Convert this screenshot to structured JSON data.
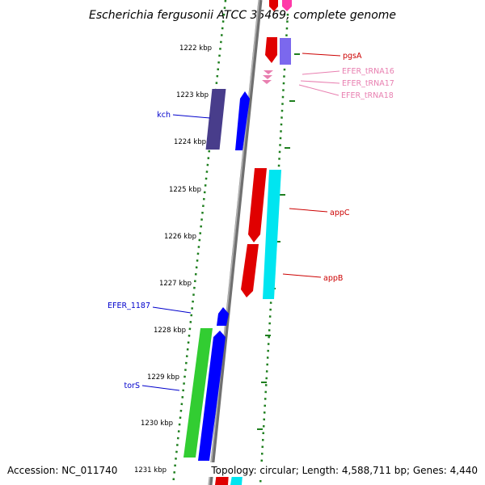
{
  "title": "Escherichia fergusonii ATCC 35469, complete genome",
  "footer": {
    "accession": "Accession: NC_011740",
    "summary": "Topology: circular; Length: 4,588,711 bp; Genes: 4,440"
  },
  "colors": {
    "background": "#ffffff",
    "ruler": "#1f7f1f",
    "backbone": "#808080",
    "forward_label": "#cc0000",
    "reverse_label": "#0000cc",
    "trna_label": "#e87fb0"
  },
  "ruler_ticks": [
    {
      "label": "1222 kbp"
    },
    {
      "label": "1223 kbp"
    },
    {
      "label": "1224 kbp"
    },
    {
      "label": "1225 kbp"
    },
    {
      "label": "1226 kbp"
    },
    {
      "label": "1227 kbp"
    },
    {
      "label": "1228 kbp"
    },
    {
      "label": "1229 kbp"
    },
    {
      "label": "1230 kbp"
    },
    {
      "label": "1231 kbp"
    }
  ],
  "features": [
    {
      "name": "pgsA",
      "strand": "forward",
      "type": "gene"
    },
    {
      "name": "EFER_tRNA16",
      "strand": "forward",
      "type": "tRNA"
    },
    {
      "name": "EFER_tRNA17",
      "strand": "forward",
      "type": "tRNA"
    },
    {
      "name": "EFER_tRNA18",
      "strand": "forward",
      "type": "tRNA"
    },
    {
      "name": "kch",
      "strand": "reverse",
      "type": "gene"
    },
    {
      "name": "appC",
      "strand": "forward",
      "type": "gene"
    },
    {
      "name": "appB",
      "strand": "forward",
      "type": "gene"
    },
    {
      "name": "EFER_1187",
      "strand": "reverse",
      "type": "gene"
    },
    {
      "name": "torS",
      "strand": "reverse",
      "type": "gene"
    }
  ]
}
